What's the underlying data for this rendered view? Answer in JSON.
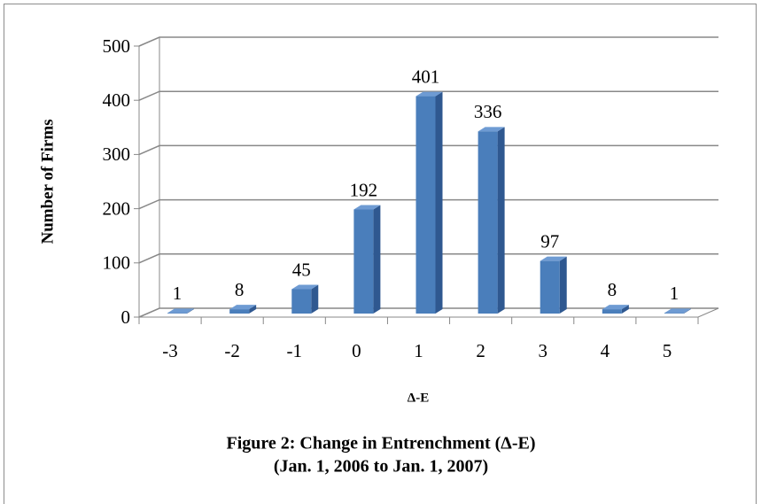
{
  "chart_data": {
    "type": "bar3d",
    "title": "Figure 2: Change in Entrenchment (Δ-E)",
    "subtitle": "(Jan. 1, 2006 to Jan. 1, 2007)",
    "x_label": "Δ-E",
    "y_label": "Number of Firms",
    "categories": [
      "-3",
      "-2",
      "-1",
      "0",
      "1",
      "2",
      "3",
      "4",
      "5"
    ],
    "values": [
      1,
      8,
      45,
      192,
      401,
      336,
      97,
      8,
      1
    ],
    "color": "#4a7ebb",
    "ylim": [
      0,
      500
    ],
    "yticks": [
      0,
      100,
      200,
      300,
      400,
      500
    ],
    "grid": true
  }
}
